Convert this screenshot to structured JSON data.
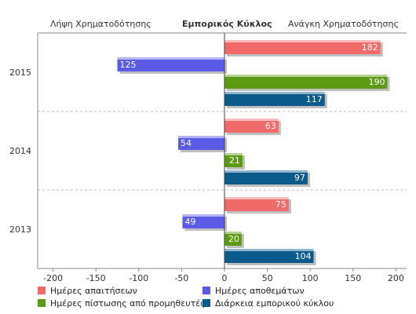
{
  "header": {
    "left_label": "Λήψη Χρηματοδότησης",
    "center_label": "Εμπορικός Κύκλος",
    "right_label": "Ανάγκη Χρηματοδότησης"
  },
  "chart_data": {
    "type": "bar",
    "orientation": "horizontal",
    "categories": [
      "2015",
      "2014",
      "2013"
    ],
    "series": [
      {
        "name": "Ημέρες απαιτήσεων",
        "color": "#f06a6a",
        "values": [
          182,
          63,
          75
        ]
      },
      {
        "name": "Ημέρες αποθεμάτων",
        "color": "#5a5ae6",
        "values": [
          -125,
          -54,
          -49
        ]
      },
      {
        "name": "Ημέρες πίστωσης από προμηθευτές",
        "color": "#5b9a12",
        "values": [
          190,
          21,
          20
        ]
      },
      {
        "name": "Διάρκεια εμπορικού κύκλου",
        "color": "#0b5a8c",
        "values": [
          117,
          97,
          104
        ]
      }
    ],
    "data_labels": [
      [
        "182",
        "63",
        "75"
      ],
      [
        "125",
        "54",
        "49"
      ],
      [
        "190",
        "21",
        "20"
      ],
      [
        "117",
        "97",
        "104"
      ]
    ],
    "xlim": [
      -200,
      200
    ],
    "xticks": [
      -200,
      -150,
      -100,
      -50,
      0,
      50,
      100,
      150,
      200
    ],
    "xtick_labels": [
      "-200",
      "-150",
      "-100",
      "-50",
      "0",
      "50",
      "100",
      "150",
      "200"
    ],
    "legend_position": "bottom",
    "grid": "horizontal-dashed"
  }
}
